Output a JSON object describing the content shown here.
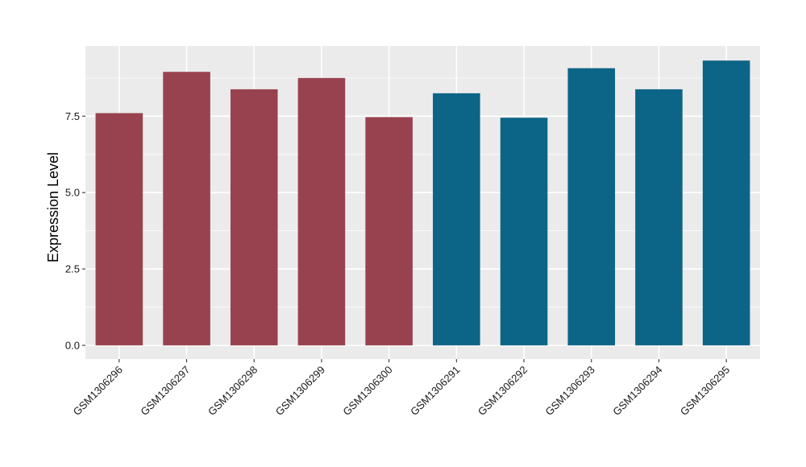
{
  "chart_data": {
    "type": "bar",
    "title": "",
    "xlabel": "",
    "ylabel": "Expression Level",
    "categories": [
      "GSM1306296",
      "GSM1306297",
      "GSM1306298",
      "GSM1306299",
      "GSM1306300",
      "GSM1306291",
      "GSM1306292",
      "GSM1306293",
      "GSM1306294",
      "GSM1306295"
    ],
    "values": [
      7.6,
      8.95,
      8.38,
      8.75,
      7.47,
      8.25,
      7.45,
      9.07,
      8.38,
      9.32
    ],
    "groups": [
      0,
      0,
      0,
      0,
      0,
      1,
      1,
      1,
      1,
      1
    ],
    "group_colors": [
      "#99424f",
      "#0c6586"
    ],
    "ylim": [
      -0.45,
      9.8
    ],
    "yticks": [
      0.0,
      2.5,
      5.0,
      7.5
    ],
    "ytick_labels": [
      "0.0",
      "2.5",
      "5.0",
      "7.5"
    ],
    "grid": true,
    "legend": "none",
    "panel_background": "#ebebeb",
    "grid_color": "#ffffff"
  }
}
